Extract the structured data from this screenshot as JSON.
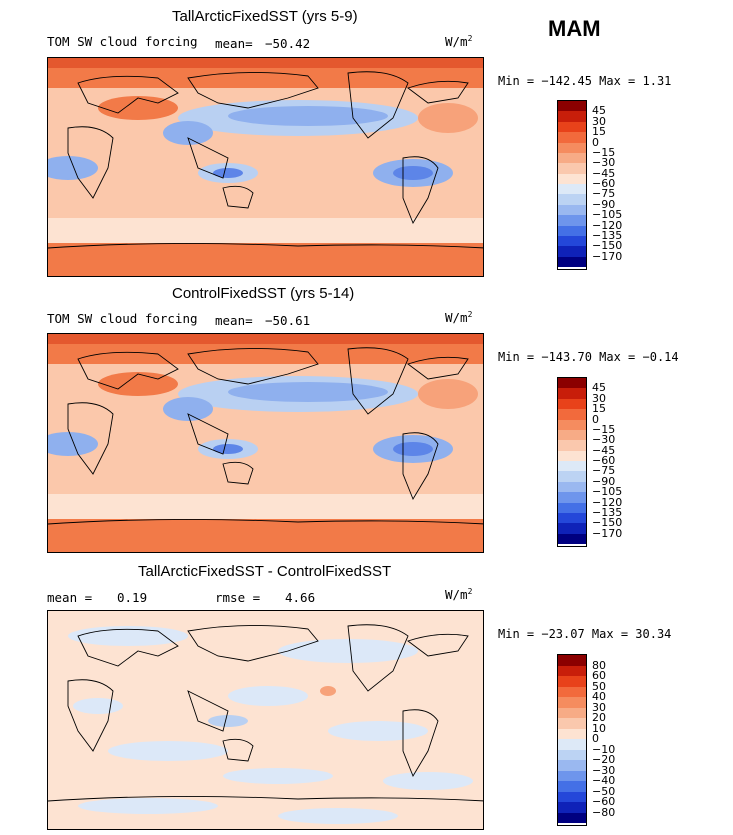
{
  "season": "MAM",
  "panels": [
    {
      "title": "TallArcticFixedSST (yrs 5-9)",
      "variable": "TOM SW cloud forcing",
      "mean_label": "mean=",
      "mean_value": "−50.42",
      "units": "W/m",
      "units_exp": "2",
      "minmax": "Min = −142.45 Max =   1.31",
      "colorbar_labels": [
        "45",
        "30",
        "15",
        "0",
        "−15",
        "−30",
        "−45",
        "−60",
        "−75",
        "−90",
        "−105",
        "−120",
        "−135",
        "−150",
        "−170"
      ],
      "colorbar_colors": [
        "#8b0000",
        "#c81e0a",
        "#e8421a",
        "#f26a3c",
        "#f58c5f",
        "#f7ab86",
        "#fac8ad",
        "#fde3d2",
        "#dde9f7",
        "#bcd3f3",
        "#9ab8f0",
        "#6e95ec",
        "#4470e6",
        "#2447d9",
        "#0f22b8",
        "#000080"
      ]
    },
    {
      "title": "ControlFixedSST (yrs 5-14)",
      "variable": "TOM SW cloud forcing",
      "mean_label": "mean=",
      "mean_value": "−50.61",
      "units": "W/m",
      "units_exp": "2",
      "minmax": "Min = −143.70 Max =  −0.14",
      "colorbar_labels": [
        "45",
        "30",
        "15",
        "0",
        "−15",
        "−30",
        "−45",
        "−60",
        "−75",
        "−90",
        "−105",
        "−120",
        "−135",
        "−150",
        "−170"
      ],
      "colorbar_colors": [
        "#8b0000",
        "#c81e0a",
        "#e8421a",
        "#f26a3c",
        "#f58c5f",
        "#f7ab86",
        "#fac8ad",
        "#fde3d2",
        "#dde9f7",
        "#bcd3f3",
        "#9ab8f0",
        "#6e95ec",
        "#4470e6",
        "#2447d9",
        "#0f22b8",
        "#000080"
      ]
    },
    {
      "title": "TallArcticFixedSST - ControlFixedSST",
      "mean_label": "mean =",
      "mean_value": "0.19",
      "rmse_label": "rmse =",
      "rmse_value": "4.66",
      "units": "W/m",
      "units_exp": "2",
      "minmax": "Min = −23.07 Max =  30.34",
      "colorbar_labels": [
        "80",
        "60",
        "50",
        "40",
        "30",
        "20",
        "10",
        "0",
        "−10",
        "−20",
        "−30",
        "−40",
        "−50",
        "−60",
        "−80"
      ],
      "colorbar_colors": [
        "#8b0000",
        "#c81e0a",
        "#e8421a",
        "#f26a3c",
        "#f58c5f",
        "#f7ab86",
        "#fac8ad",
        "#fde3d2",
        "#dde9f7",
        "#bcd3f3",
        "#9ab8f0",
        "#6e95ec",
        "#4470e6",
        "#2447d9",
        "#0f22b8",
        "#000080"
      ]
    }
  ],
  "map_colors": {
    "deep_red": "#e4582e",
    "orange": "#f27a48",
    "light_orange": "#f7a27a",
    "peach": "#fbc8ab",
    "pale": "#fde3d2",
    "pale_blue": "#dce8f8",
    "light_blue": "#b9d0f2",
    "mid_blue": "#8fb0ee",
    "blue": "#5d85e8",
    "dark_blue": "#2b4fd6"
  }
}
